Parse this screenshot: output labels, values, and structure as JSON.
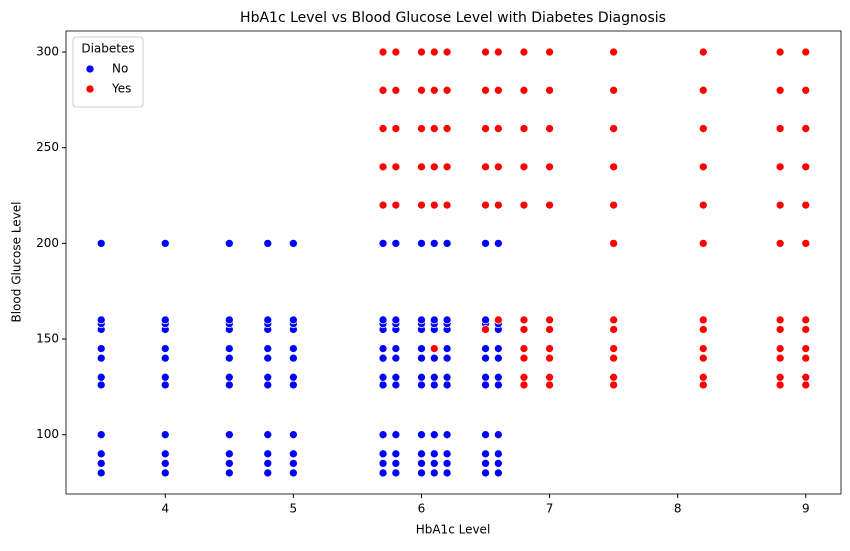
{
  "chart_data": {
    "type": "scatter",
    "title": "HbA1c Level vs Blood Glucose Level with Diabetes Diagnosis",
    "x_label": "HbA1c Level",
    "y_label": "Blood Glucose Level",
    "legend_title": "Diabetes",
    "legend_position": "upper left",
    "xlim": [
      3.225,
      9.275
    ],
    "ylim": [
      69,
      311
    ],
    "xticks": [
      4,
      5,
      6,
      7,
      8,
      9
    ],
    "yticks": [
      100,
      150,
      200,
      250,
      300
    ],
    "grid": false,
    "series": [
      {
        "name": "No",
        "color": "#0000ff",
        "x": [
          3.5,
          3.5,
          3.5,
          3.5,
          3.5,
          3.5,
          3.5,
          3.5,
          3.5,
          3.5,
          3.5,
          3.5,
          4,
          4,
          4,
          4,
          4,
          4,
          4,
          4,
          4,
          4,
          4,
          4,
          4.5,
          4.5,
          4.5,
          4.5,
          4.5,
          4.5,
          4.5,
          4.5,
          4.5,
          4.5,
          4.5,
          4.5,
          4.8,
          4.8,
          4.8,
          4.8,
          4.8,
          4.8,
          4.8,
          4.8,
          4.8,
          4.8,
          4.8,
          4.8,
          5,
          5,
          5,
          5,
          5,
          5,
          5,
          5,
          5,
          5,
          5,
          5,
          5.7,
          5.7,
          5.7,
          5.7,
          5.7,
          5.7,
          5.7,
          5.7,
          5.7,
          5.7,
          5.7,
          5.7,
          5.8,
          5.8,
          5.8,
          5.8,
          5.8,
          5.8,
          5.8,
          5.8,
          5.8,
          5.8,
          5.8,
          5.8,
          6,
          6,
          6,
          6,
          6,
          6,
          6,
          6,
          6,
          6,
          6,
          6,
          6.1,
          6.1,
          6.1,
          6.1,
          6.1,
          6.1,
          6.1,
          6.1,
          6.1,
          6.1,
          6.1,
          6.1,
          6.2,
          6.2,
          6.2,
          6.2,
          6.2,
          6.2,
          6.2,
          6.2,
          6.2,
          6.2,
          6.2,
          6.2,
          6.5,
          6.5,
          6.5,
          6.5,
          6.5,
          6.5,
          6.5,
          6.5,
          6.5,
          6.5,
          6.5,
          6.5,
          6.6,
          6.6,
          6.6,
          6.6,
          6.6,
          6.6,
          6.6,
          6.6,
          6.6,
          6.6,
          6.6,
          6.6
        ],
        "values": [
          80,
          85,
          90,
          100,
          126,
          130,
          140,
          145,
          155,
          158,
          160,
          200,
          80,
          85,
          90,
          100,
          126,
          130,
          140,
          145,
          155,
          158,
          160,
          200,
          80,
          85,
          90,
          100,
          126,
          130,
          140,
          145,
          155,
          158,
          160,
          200,
          80,
          85,
          90,
          100,
          126,
          130,
          140,
          145,
          155,
          158,
          160,
          200,
          80,
          85,
          90,
          100,
          126,
          130,
          140,
          145,
          155,
          158,
          160,
          200,
          80,
          85,
          90,
          100,
          126,
          130,
          140,
          145,
          155,
          158,
          160,
          200,
          80,
          85,
          90,
          100,
          126,
          130,
          140,
          145,
          155,
          158,
          160,
          200,
          80,
          85,
          90,
          100,
          126,
          130,
          140,
          145,
          155,
          158,
          160,
          200,
          80,
          85,
          90,
          100,
          126,
          130,
          140,
          145,
          155,
          158,
          160,
          200,
          80,
          85,
          90,
          100,
          126,
          130,
          140,
          145,
          155,
          158,
          160,
          200,
          80,
          85,
          90,
          100,
          126,
          130,
          140,
          145,
          155,
          158,
          160,
          200,
          80,
          85,
          90,
          100,
          126,
          130,
          140,
          145,
          155,
          158,
          160,
          200
        ]
      },
      {
        "name": "Yes",
        "color": "#ff0000",
        "x": [
          5.7,
          5.7,
          5.7,
          5.7,
          5.7,
          5.8,
          5.8,
          5.8,
          5.8,
          5.8,
          6,
          6,
          6,
          6,
          6,
          6.1,
          6.1,
          6.1,
          6.1,
          6.1,
          6.2,
          6.2,
          6.2,
          6.2,
          6.2,
          6.5,
          6.5,
          6.5,
          6.5,
          6.5,
          6.6,
          6.6,
          6.6,
          6.6,
          6.6,
          6.8,
          6.8,
          6.8,
          6.8,
          6.8,
          7,
          7,
          7,
          7,
          7,
          7.5,
          7.5,
          7.5,
          7.5,
          7.5,
          8.2,
          8.2,
          8.2,
          8.2,
          8.2,
          8.8,
          8.8,
          8.8,
          8.8,
          8.8,
          9,
          9,
          9,
          9,
          9,
          6.8,
          6.8,
          6.8,
          6.8,
          6.8,
          6.8,
          7,
          7,
          7,
          7,
          7,
          7,
          7.5,
          7.5,
          7.5,
          7.5,
          7.5,
          7.5,
          7.5,
          8.2,
          8.2,
          8.2,
          8.2,
          8.2,
          8.2,
          8.2,
          8.8,
          8.8,
          8.8,
          8.8,
          8.8,
          8.8,
          8.8,
          9,
          9,
          9,
          9,
          9,
          9,
          9,
          6.1,
          6.5,
          6.6
        ],
        "values": [
          220,
          240,
          260,
          280,
          300,
          220,
          240,
          260,
          280,
          300,
          220,
          240,
          260,
          280,
          300,
          220,
          240,
          260,
          280,
          300,
          220,
          240,
          260,
          280,
          300,
          220,
          240,
          260,
          280,
          300,
          220,
          240,
          260,
          280,
          300,
          220,
          240,
          260,
          280,
          300,
          220,
          240,
          260,
          280,
          300,
          220,
          240,
          260,
          280,
          300,
          220,
          240,
          260,
          280,
          300,
          220,
          240,
          260,
          280,
          300,
          220,
          240,
          260,
          280,
          300,
          126,
          130,
          140,
          145,
          155,
          160,
          126,
          130,
          140,
          145,
          155,
          160,
          126,
          130,
          140,
          145,
          155,
          160,
          200,
          126,
          130,
          140,
          145,
          155,
          160,
          200,
          126,
          130,
          140,
          145,
          155,
          160,
          200,
          126,
          130,
          140,
          145,
          155,
          160,
          200,
          145,
          155,
          160
        ]
      }
    ]
  }
}
